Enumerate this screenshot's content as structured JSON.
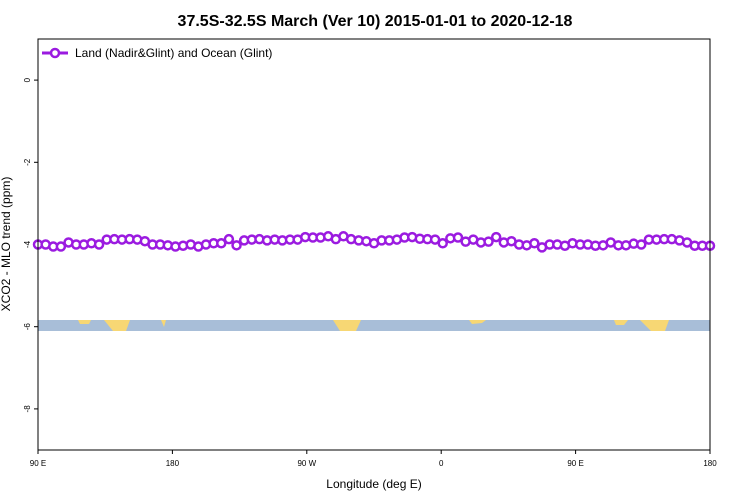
{
  "chart_data": {
    "type": "line",
    "title": "37.5S-32.5S March (Ver 10)   2015-01-01 to 2020-12-18",
    "xlabel": "Longitude (deg E)",
    "ylabel": "XCO2 - MLO trend (ppm)",
    "x_tick_labels": [
      "90 E",
      "180",
      "90 W",
      "0",
      "90 E",
      "180"
    ],
    "y_ticks": [
      0,
      -2,
      -4,
      -6,
      -8
    ],
    "y_tick_labels": [
      "0",
      "-2",
      "-4",
      "-6",
      "-8"
    ],
    "ylim": [
      -9.0,
      1.0
    ],
    "legend_position": "top-left",
    "colors": {
      "series": "#9b1be0",
      "ocean": "#a8bed8",
      "land": "#f7d774"
    },
    "series": [
      {
        "name": "Land (Nadir&Glint) and Ocean (Glint)",
        "values": [
          -4.0,
          -4.0,
          -4.05,
          -4.05,
          -3.95,
          -4.0,
          -4.0,
          -3.97,
          -4.0,
          -3.88,
          -3.87,
          -3.88,
          -3.87,
          -3.88,
          -3.92,
          -4.0,
          -4.0,
          -4.02,
          -4.05,
          -4.03,
          -4.0,
          -4.05,
          -4.0,
          -3.97,
          -3.97,
          -3.87,
          -4.02,
          -3.9,
          -3.88,
          -3.87,
          -3.9,
          -3.88,
          -3.9,
          -3.88,
          -3.88,
          -3.82,
          -3.83,
          -3.83,
          -3.8,
          -3.87,
          -3.8,
          -3.87,
          -3.9,
          -3.92,
          -3.97,
          -3.9,
          -3.9,
          -3.88,
          -3.83,
          -3.82,
          -3.86,
          -3.87,
          -3.88,
          -3.97,
          -3.85,
          -3.83,
          -3.93,
          -3.88,
          -3.95,
          -3.93,
          -3.82,
          -3.95,
          -3.92,
          -4.0,
          -4.02,
          -3.97,
          -4.07,
          -4.0,
          -4.0,
          -4.03,
          -3.97,
          -4.0,
          -4.0,
          -4.03,
          -4.02,
          -3.95,
          -4.02,
          -4.02,
          -3.98,
          -4.0,
          -3.88,
          -3.88,
          -3.87,
          -3.87,
          -3.9,
          -3.95,
          -4.03,
          -4.03,
          -4.03
        ]
      }
    ]
  }
}
